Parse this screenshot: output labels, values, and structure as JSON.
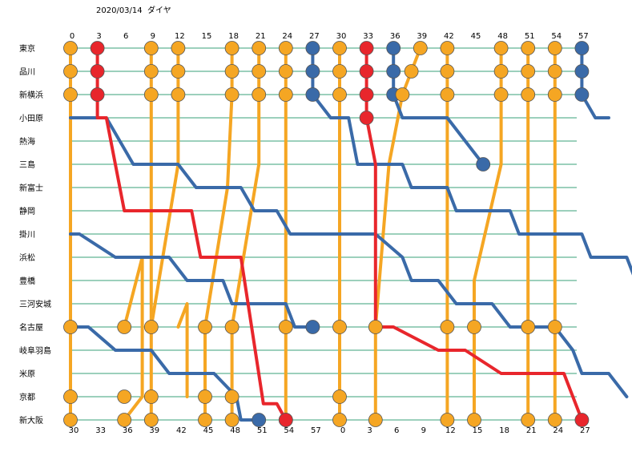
{
  "header": {
    "date": "2020/03/14",
    "label": "ダイヤ"
  },
  "stations": [
    "東京",
    "品川",
    "新横浜",
    "小田原",
    "熱海",
    "三島",
    "新富士",
    "静岡",
    "掛川",
    "浜松",
    "豊橋",
    "三河安城",
    "名古屋",
    "岐阜羽島",
    "米原",
    "京都",
    "新大阪"
  ],
  "top_ticks": [
    "0",
    "3",
    "6",
    "9",
    "12",
    "15",
    "18",
    "21",
    "24",
    "27",
    "30",
    "33",
    "36",
    "39",
    "42",
    "45",
    "48",
    "51",
    "54",
    "57"
  ],
  "bottom_ticks": [
    "30",
    "33",
    "36",
    "39",
    "42",
    "45",
    "48",
    "51",
    "54",
    "57",
    "0",
    "3",
    "6",
    "9",
    "12",
    "15",
    "18",
    "21",
    "24",
    "27"
  ],
  "colors": {
    "grid": "#3aa07a",
    "orange": "#f5a623",
    "blue": "#3a6aa8",
    "red": "#e8262c",
    "stroke": "#555555"
  },
  "trains": [
    {
      "color": "red",
      "path": [
        [
          3,
          0
        ],
        [
          3,
          1
        ],
        [
          3,
          2
        ],
        [
          3,
          3
        ],
        [
          4,
          3
        ],
        [
          6,
          7
        ],
        [
          13.5,
          7
        ],
        [
          14.5,
          9
        ],
        [
          19,
          9
        ],
        [
          21.5,
          15.3
        ],
        [
          23,
          15.3
        ],
        [
          24,
          16
        ]
      ]
    },
    {
      "color": "red",
      "path": [
        [
          33,
          0
        ],
        [
          33,
          1
        ],
        [
          33,
          2
        ],
        [
          33,
          3
        ],
        [
          34,
          5
        ],
        [
          34,
          12
        ],
        [
          36,
          12
        ],
        [
          38,
          12.4
        ],
        [
          41,
          13
        ],
        [
          44,
          13
        ],
        [
          48,
          14
        ],
        [
          55,
          14
        ],
        [
          57,
          16
        ]
      ]
    },
    {
      "color": "blue",
      "path": [
        [
          27,
          0
        ],
        [
          27,
          1
        ],
        [
          27,
          2
        ],
        [
          29,
          3
        ],
        [
          31,
          3
        ],
        [
          32,
          5
        ],
        [
          37,
          5
        ],
        [
          38,
          6
        ],
        [
          42,
          6
        ],
        [
          43,
          7
        ],
        [
          49,
          7
        ],
        [
          50,
          8
        ],
        [
          57,
          8
        ],
        [
          58,
          9
        ],
        [
          60,
          9
        ],
        [
          62,
          9
        ],
        [
          63,
          10
        ],
        [
          67,
          10
        ],
        [
          68,
          11
        ],
        [
          73,
          11
        ],
        [
          75,
          12
        ]
      ]
    },
    {
      "color": "blue",
      "path": [
        [
          36,
          0
        ],
        [
          36,
          1
        ],
        [
          36,
          2
        ],
        [
          37,
          3
        ],
        [
          42,
          3
        ],
        [
          46,
          5
        ]
      ]
    },
    {
      "color": "blue",
      "path": [
        [
          57,
          0
        ],
        [
          57,
          1
        ],
        [
          57,
          2
        ],
        [
          58.5,
          3
        ],
        [
          60,
          3
        ]
      ]
    },
    {
      "color": "blue",
      "path": [
        [
          0,
          3
        ],
        [
          2,
          3
        ],
        [
          4,
          3
        ],
        [
          7,
          5
        ],
        [
          12,
          5
        ],
        [
          14,
          6
        ],
        [
          19,
          6
        ],
        [
          20.5,
          7
        ],
        [
          23,
          7
        ],
        [
          24.5,
          8
        ],
        [
          30,
          8
        ],
        [
          34,
          8
        ],
        [
          37,
          9
        ],
        [
          38,
          10
        ],
        [
          41,
          10
        ],
        [
          43,
          11
        ],
        [
          47,
          11
        ],
        [
          49,
          12
        ],
        [
          54,
          12
        ],
        [
          56,
          13
        ],
        [
          57,
          14
        ],
        [
          60,
          14
        ],
        [
          62,
          15
        ]
      ]
    },
    {
      "color": "blue",
      "path": [
        [
          0,
          8
        ],
        [
          1,
          8
        ],
        [
          5,
          9
        ],
        [
          11,
          9
        ],
        [
          13,
          10
        ],
        [
          17,
          10
        ],
        [
          18,
          11
        ],
        [
          24,
          11
        ],
        [
          25,
          12
        ],
        [
          27,
          12
        ]
      ]
    },
    {
      "color": "blue",
      "path": [
        [
          0,
          12
        ],
        [
          0.5,
          12
        ],
        [
          2,
          12
        ],
        [
          5,
          13
        ],
        [
          9,
          13
        ],
        [
          11,
          14
        ],
        [
          16,
          14
        ],
        [
          18.5,
          15
        ],
        [
          19,
          16
        ],
        [
          21,
          16
        ]
      ]
    },
    {
      "color": "orange",
      "path": [
        [
          0,
          0
        ],
        [
          0,
          1
        ],
        [
          0,
          2
        ],
        [
          0,
          12
        ],
        [
          0,
          15
        ],
        [
          0,
          16
        ]
      ]
    },
    {
      "color": "orange",
      "path": [
        [
          9,
          0
        ],
        [
          9,
          1
        ],
        [
          9,
          2
        ],
        [
          9,
          12
        ],
        [
          9,
          15
        ],
        [
          9,
          16
        ]
      ]
    },
    {
      "color": "orange",
      "path": [
        [
          12,
          0
        ],
        [
          12,
          1
        ],
        [
          12,
          2
        ],
        [
          12,
          5
        ],
        [
          9,
          12
        ]
      ]
    },
    {
      "color": "orange",
      "path": [
        [
          18,
          0
        ],
        [
          18,
          1
        ],
        [
          18,
          2
        ],
        [
          17.5,
          6
        ],
        [
          15,
          12
        ],
        [
          15,
          15
        ],
        [
          15,
          16
        ]
      ]
    },
    {
      "color": "orange",
      "path": [
        [
          21,
          0
        ],
        [
          21,
          1
        ],
        [
          21,
          2
        ],
        [
          21,
          5
        ],
        [
          18,
          12
        ],
        [
          18,
          15
        ],
        [
          18,
          16
        ]
      ]
    },
    {
      "color": "orange",
      "path": [
        [
          24,
          0
        ],
        [
          24,
          1
        ],
        [
          24,
          2
        ],
        [
          24,
          12
        ],
        [
          24,
          15
        ],
        [
          24,
          16
        ]
      ]
    },
    {
      "color": "orange",
      "path": [
        [
          30,
          0
        ],
        [
          30,
          1
        ],
        [
          30,
          2
        ],
        [
          30,
          12
        ],
        [
          30,
          15
        ],
        [
          30,
          16
        ]
      ]
    },
    {
      "color": "orange",
      "path": [
        [
          39,
          0
        ],
        [
          38,
          1
        ],
        [
          37,
          2
        ],
        [
          35.5,
          5
        ],
        [
          34,
          12
        ],
        [
          34,
          16
        ]
      ]
    },
    {
      "color": "orange",
      "path": [
        [
          42,
          0
        ],
        [
          42,
          1
        ],
        [
          42,
          2
        ],
        [
          42,
          12
        ],
        [
          42,
          16
        ]
      ]
    },
    {
      "color": "orange",
      "path": [
        [
          48,
          0
        ],
        [
          48,
          1
        ],
        [
          48,
          2
        ],
        [
          48,
          3
        ],
        [
          48,
          5
        ],
        [
          45,
          10
        ],
        [
          45,
          12
        ],
        [
          45,
          16
        ]
      ]
    },
    {
      "color": "orange",
      "path": [
        [
          51,
          0
        ],
        [
          51,
          1
        ],
        [
          51,
          2
        ],
        [
          51,
          12
        ],
        [
          51,
          16
        ]
      ]
    },
    {
      "color": "orange",
      "path": [
        [
          54,
          0
        ],
        [
          54,
          1
        ],
        [
          54,
          2
        ],
        [
          54,
          12
        ],
        [
          54,
          16
        ]
      ]
    },
    {
      "color": "orange",
      "path": [
        [
          6,
          12
        ],
        [
          8,
          9
        ],
        [
          8,
          15
        ],
        [
          6,
          16
        ]
      ]
    },
    {
      "color": "orange",
      "path": [
        [
          12,
          12
        ],
        [
          13,
          11
        ],
        [
          13,
          15
        ]
      ]
    }
  ],
  "stops": [
    {
      "color": "red",
      "points": [
        [
          3,
          0
        ],
        [
          3,
          1
        ],
        [
          3,
          2
        ],
        [
          33,
          0
        ],
        [
          33,
          1
        ],
        [
          33,
          2
        ],
        [
          33,
          3
        ]
      ]
    },
    {
      "color": "blue",
      "points": [
        [
          27,
          0
        ],
        [
          27,
          1
        ],
        [
          27,
          2
        ],
        [
          36,
          0
        ],
        [
          36,
          1
        ],
        [
          36,
          2
        ],
        [
          57,
          0
        ],
        [
          57,
          1
        ],
        [
          57,
          2
        ],
        [
          46,
          5
        ]
      ]
    },
    {
      "color": "orange",
      "points": [
        [
          0,
          0
        ],
        [
          0,
          1
        ],
        [
          0,
          2
        ],
        [
          9,
          0
        ],
        [
          9,
          1
        ],
        [
          9,
          2
        ],
        [
          12,
          0
        ],
        [
          12,
          1
        ],
        [
          12,
          2
        ],
        [
          18,
          0
        ],
        [
          18,
          1
        ],
        [
          18,
          2
        ],
        [
          21,
          0
        ],
        [
          21,
          1
        ],
        [
          21,
          2
        ],
        [
          24,
          0
        ],
        [
          24,
          1
        ],
        [
          24,
          2
        ],
        [
          30,
          0
        ],
        [
          30,
          1
        ],
        [
          30,
          2
        ],
        [
          39,
          0
        ],
        [
          38,
          1
        ],
        [
          37,
          2
        ],
        [
          42,
          0
        ],
        [
          42,
          1
        ],
        [
          42,
          2
        ],
        [
          48,
          0
        ],
        [
          48,
          1
        ],
        [
          48,
          2
        ],
        [
          51,
          0
        ],
        [
          51,
          1
        ],
        [
          51,
          2
        ],
        [
          54,
          0
        ],
        [
          54,
          1
        ],
        [
          54,
          2
        ]
      ]
    },
    {
      "color": "orange",
      "points": [
        [
          0,
          12
        ],
        [
          0,
          15
        ],
        [
          0,
          16
        ],
        [
          6,
          12
        ],
        [
          6,
          15
        ],
        [
          6,
          16
        ],
        [
          9,
          12
        ],
        [
          9,
          15
        ],
        [
          9,
          16
        ],
        [
          15,
          12
        ],
        [
          15,
          15
        ],
        [
          15,
          16
        ],
        [
          18,
          12
        ],
        [
          18,
          15
        ],
        [
          18,
          16
        ],
        [
          24,
          12
        ],
        [
          24,
          16
        ],
        [
          30,
          12
        ],
        [
          30,
          15
        ],
        [
          30,
          16
        ],
        [
          34,
          12
        ],
        [
          34,
          16
        ],
        [
          42,
          12
        ],
        [
          42,
          16
        ],
        [
          45,
          12
        ],
        [
          45,
          16
        ],
        [
          51,
          12
        ],
        [
          51,
          16
        ],
        [
          54,
          12
        ],
        [
          54,
          16
        ]
      ]
    },
    {
      "color": "blue",
      "points": [
        [
          27,
          12
        ],
        [
          21,
          16
        ]
      ]
    },
    {
      "color": "red",
      "points": [
        [
          24,
          16
        ],
        [
          57,
          16
        ]
      ]
    }
  ]
}
